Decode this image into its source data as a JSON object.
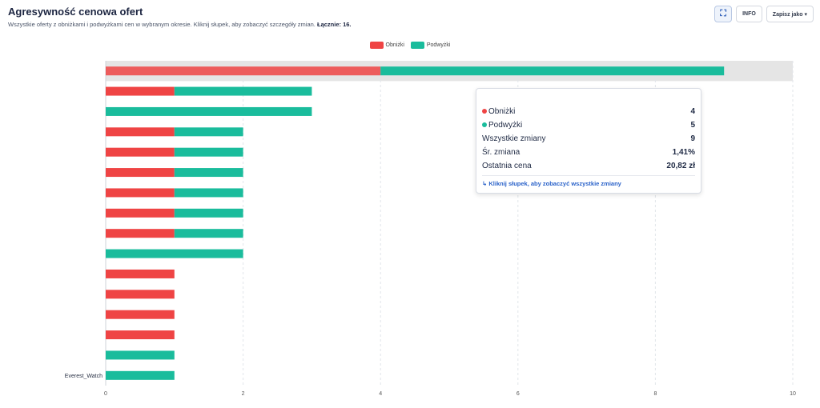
{
  "header": {
    "title": "Agresywność cenowa ofert",
    "subtitle": "Wszystkie oferty z obniżkami i podwyżkami cen w wybranym okresie. Kliknij słupek, aby zobaczyć szczegóły zmian.",
    "total_label": "Łącznie: 16."
  },
  "toolbar": {
    "expand_icon": "expand-icon",
    "info_label": "INFO",
    "save_label": "Zapisz jako ▾"
  },
  "legend": {
    "decrease": "Obniżki",
    "increase": "Podwyżki"
  },
  "colors": {
    "decrease": "#ef4444",
    "increase": "#1abc9c",
    "highlight_bg": "#e5e5e5",
    "grid": "#e2e5ea"
  },
  "tooltip": {
    "title": "",
    "rows": [
      {
        "label": "Obniżki",
        "value": "4"
      },
      {
        "label": "Podwyżki",
        "value": "5"
      },
      {
        "label": "Wszystkie zmiany",
        "value": "9"
      },
      {
        "label": "Śr. zmiana",
        "value": "1,41%"
      },
      {
        "label": "Ostatnia cena",
        "value": "20,82 zł"
      }
    ],
    "link": "Kliknij słupek, aby zobaczyć wszystkie zmiany"
  },
  "chart_data": {
    "type": "bar",
    "orientation": "horizontal",
    "stacked": true,
    "xlim": [
      0,
      10
    ],
    "xticks": [
      0,
      2,
      4,
      6,
      8,
      10
    ],
    "grid": true,
    "legend_position": "top-center",
    "highlighted_index": 0,
    "categories": [
      "",
      "",
      "",
      "",
      "",
      "",
      "",
      "",
      "",
      "",
      "",
      "",
      "",
      "",
      "",
      "Everest_Watch"
    ],
    "series": [
      {
        "name": "Obniżki",
        "values": [
          4,
          1,
          0,
          1,
          1,
          1,
          1,
          1,
          1,
          0,
          1,
          1,
          1,
          1,
          0,
          0
        ]
      },
      {
        "name": "Podwyżki",
        "values": [
          5,
          2,
          3,
          1,
          1,
          1,
          1,
          1,
          1,
          2,
          0,
          0,
          0,
          0,
          1,
          1
        ]
      }
    ]
  }
}
